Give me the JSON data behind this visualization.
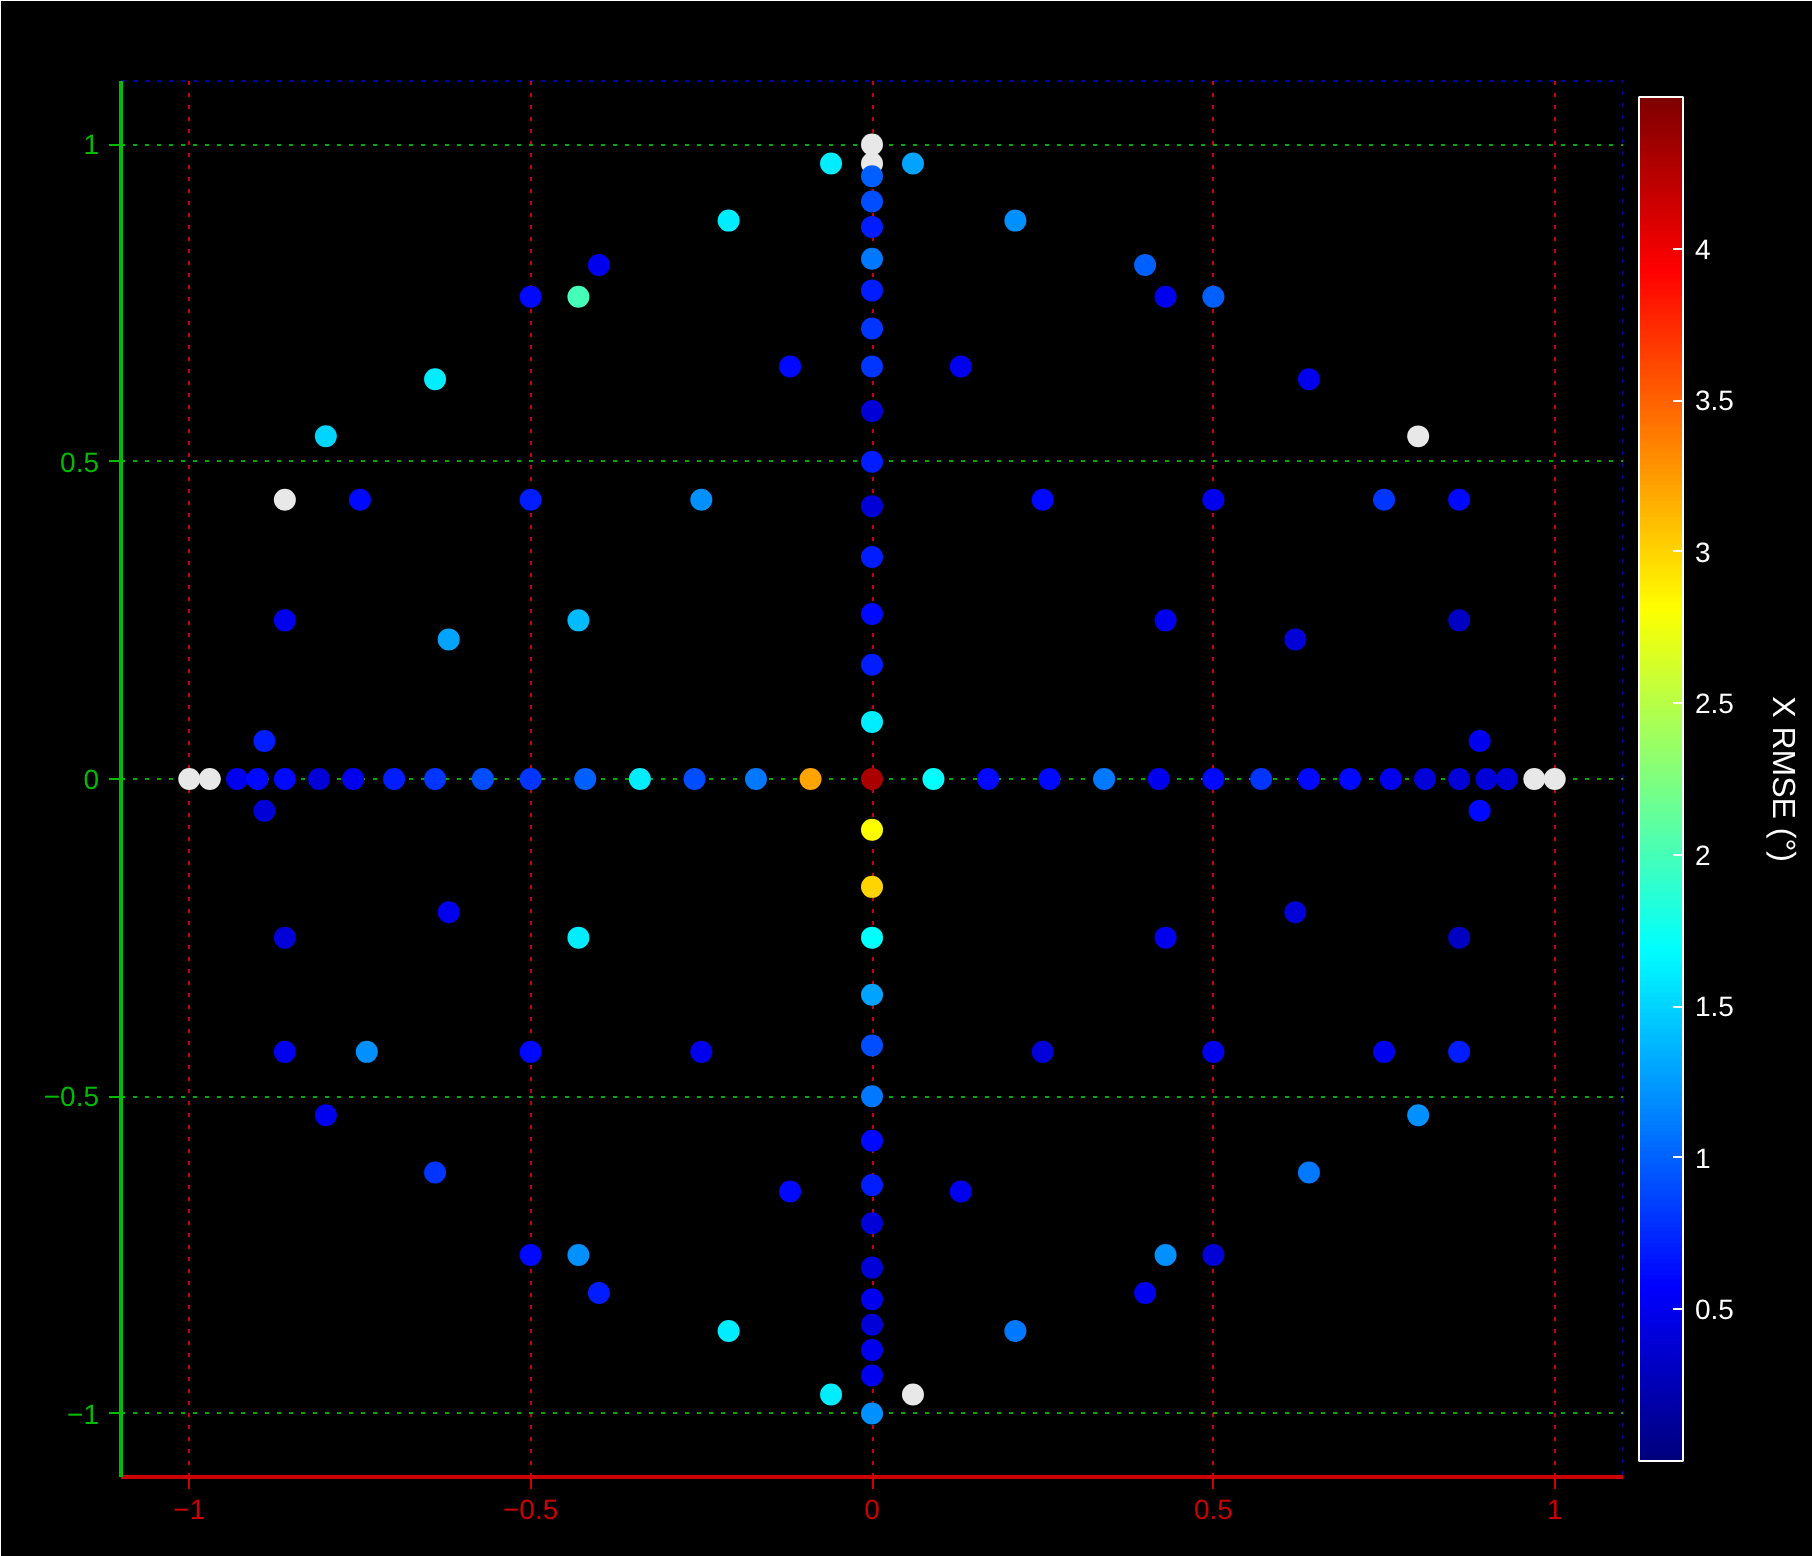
{
  "chart_data": {
    "type": "scatter",
    "clabel": "X RMSE (°)",
    "clim": [
      0,
      4.5
    ],
    "cticks": [
      0.5,
      1,
      1.5,
      2,
      2.5,
      3,
      3.5,
      4
    ],
    "xlim": [
      -1.1,
      1.1
    ],
    "ylim": [
      -1.1,
      1.1
    ],
    "xticks": [
      -1,
      -0.5,
      0,
      0.5,
      1
    ],
    "yticks": [
      -1,
      -0.5,
      0,
      0.5,
      1
    ],
    "grid": true,
    "marker": "circle",
    "x": [
      -1.0,
      -0.97,
      -0.93,
      -0.9,
      -0.86,
      -0.81,
      -0.76,
      -0.7,
      -0.64,
      -0.57,
      -0.5,
      -0.42,
      -0.34,
      -0.26,
      -0.17,
      -0.09,
      0,
      0.09,
      0.17,
      0.26,
      0.34,
      0.42,
      0.5,
      0.57,
      0.64,
      0.7,
      0.76,
      0.81,
      0.86,
      0.9,
      0.93,
      0.97,
      1.0,
      0,
      0,
      0,
      0,
      0,
      0,
      0,
      0,
      0,
      0,
      0,
      0,
      0,
      0,
      0,
      0,
      0,
      0,
      0,
      0,
      0,
      0,
      0,
      0,
      0,
      0,
      0,
      0,
      0,
      0,
      0,
      -0.06,
      -0.21,
      -0.4,
      -0.5,
      -0.43,
      -0.12,
      -0.64,
      -0.8,
      -0.86,
      -0.75,
      -0.5,
      -0.25,
      -0.86,
      -0.62,
      -0.43,
      -0.89,
      0.06,
      0.21,
      0.4,
      0.43,
      0.5,
      0.13,
      0.64,
      0.8,
      0.25,
      0.5,
      0.75,
      0.86,
      0.43,
      0.62,
      0.86,
      0.89,
      -0.89,
      -0.62,
      -0.86,
      -0.43,
      -0.86,
      -0.74,
      -0.5,
      -0.25,
      -0.8,
      -0.64,
      -0.12,
      -0.5,
      -0.43,
      -0.4,
      -0.21,
      -0.06,
      0.89,
      0.62,
      0.43,
      0.86,
      0.25,
      0.5,
      0.75,
      0.86,
      0.8,
      0.64,
      0.13,
      0.43,
      0.5,
      0.4,
      0.21,
      0.06
    ],
    "values": [
      0,
      0,
      0,
      0,
      0,
      0,
      0,
      0,
      0,
      0,
      0,
      0,
      0,
      0,
      0,
      0,
      0,
      0,
      0,
      0,
      0,
      0,
      0,
      0,
      0,
      0,
      0,
      0,
      0,
      0,
      0,
      0,
      0,
      1.0,
      0.97,
      0.95,
      0.91,
      0.87,
      0.82,
      0.77,
      0.71,
      0.65,
      0.58,
      0.5,
      0.43,
      0.35,
      0.26,
      0.18,
      0.09,
      -0.08,
      -0.17,
      -0.25,
      -0.34,
      -0.42,
      -0.5,
      -0.57,
      -0.64,
      -0.7,
      -0.77,
      -0.82,
      -0.86,
      -0.9,
      -0.94,
      -1.0,
      0.97,
      0.88,
      0.81,
      0.76,
      0.76,
      0.65,
      0.63,
      0.54,
      0.44,
      0.44,
      0.44,
      0.44,
      0.25,
      0.22,
      0.25,
      0.06,
      0.97,
      0.88,
      0.81,
      0.76,
      0.76,
      0.65,
      0.63,
      0.54,
      0.44,
      0.44,
      0.44,
      0.44,
      0.25,
      0.22,
      0.25,
      0.06,
      -0.05,
      -0.21,
      -0.25,
      -0.25,
      -0.43,
      -0.43,
      -0.43,
      -0.43,
      -0.53,
      -0.62,
      -0.65,
      -0.75,
      -0.75,
      -0.81,
      -0.87,
      -0.97,
      -0.05,
      -0.21,
      -0.25,
      -0.25,
      -0.43,
      -0.43,
      -0.43,
      -0.43,
      -0.53,
      -0.62,
      -0.65,
      -0.75,
      -0.75,
      -0.81,
      -0.87,
      -0.97
    ],
    "cvalues": [
      null,
      null,
      0.5,
      0.6,
      0.6,
      0.4,
      0.5,
      0.7,
      0.8,
      0.9,
      0.8,
      1.0,
      1.6,
      0.9,
      1.1,
      3.2,
      4.3,
      1.7,
      0.6,
      0.6,
      1.1,
      0.5,
      0.6,
      0.8,
      0.6,
      0.6,
      0.5,
      0.4,
      0.4,
      0.4,
      0.4,
      null,
      null,
      null,
      null,
      1.0,
      0.9,
      0.7,
      1.1,
      0.7,
      0.8,
      0.8,
      0.4,
      0.7,
      0.4,
      0.7,
      0.6,
      0.7,
      1.6,
      2.8,
      3.0,
      1.7,
      1.3,
      0.9,
      1.1,
      0.6,
      0.7,
      0.4,
      0.4,
      0.5,
      0.4,
      0.5,
      0.5,
      1.2,
      1.6,
      1.6,
      0.5,
      0.6,
      2.0,
      0.6,
      1.6,
      1.5,
      null,
      0.6,
      0.7,
      1.2,
      0.5,
      1.3,
      1.4,
      0.7,
      1.3,
      1.2,
      1.0,
      0.5,
      1.0,
      0.5,
      0.5,
      null,
      0.6,
      0.5,
      0.8,
      0.6,
      0.5,
      0.4,
      0.3,
      0.5,
      0.4,
      0.5,
      0.4,
      1.6,
      0.5,
      1.2,
      0.6,
      0.5,
      0.5,
      0.8,
      0.6,
      0.6,
      1.2,
      0.7,
      1.6,
      1.6,
      0.6,
      0.4,
      0.5,
      0.3,
      0.4,
      0.5,
      0.5,
      0.7,
      1.2,
      1.1,
      0.5,
      1.2,
      0.4,
      0.5,
      1.1,
      null
    ]
  }
}
